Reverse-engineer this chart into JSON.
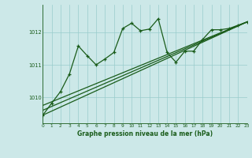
{
  "title": "Graphe pression niveau de la mer (hPa)",
  "background_color": "#cce8e8",
  "grid_color": "#99cccc",
  "line_color": "#1a5c1a",
  "xlim": [
    0,
    23
  ],
  "ylim": [
    1009.2,
    1012.85
  ],
  "yticks": [
    1010,
    1011,
    1012
  ],
  "xticks": [
    0,
    1,
    2,
    3,
    4,
    5,
    6,
    7,
    8,
    9,
    10,
    11,
    12,
    13,
    14,
    15,
    16,
    17,
    18,
    19,
    20,
    21,
    22,
    23
  ],
  "series1_x": [
    0,
    1,
    2,
    3,
    4,
    5,
    6,
    7,
    8,
    9,
    10,
    11,
    12,
    13,
    14,
    15,
    16,
    17,
    18,
    19,
    20,
    21,
    22,
    23
  ],
  "series1_y": [
    1009.45,
    1009.82,
    1010.18,
    1010.72,
    1011.58,
    1011.28,
    1011.0,
    1011.18,
    1011.38,
    1012.12,
    1012.28,
    1012.05,
    1012.1,
    1012.42,
    1011.38,
    1011.08,
    1011.42,
    1011.42,
    1011.78,
    1012.08,
    1012.08,
    1012.12,
    1012.22,
    1012.32
  ],
  "series2_x": [
    0,
    23
  ],
  "series2_y": [
    1009.45,
    1012.32
  ],
  "series3_x": [
    0,
    23
  ],
  "series3_y": [
    1009.6,
    1012.32
  ],
  "series4_x": [
    0,
    23
  ],
  "series4_y": [
    1009.75,
    1012.32
  ]
}
